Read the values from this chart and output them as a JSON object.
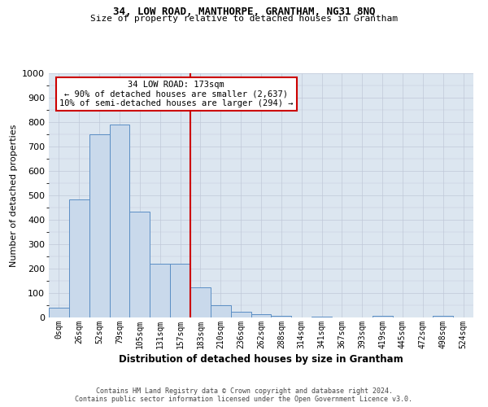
{
  "title": "34, LOW ROAD, MANTHORPE, GRANTHAM, NG31 8NQ",
  "subtitle": "Size of property relative to detached houses in Grantham",
  "xlabel": "Distribution of detached houses by size in Grantham",
  "ylabel": "Number of detached properties",
  "footer_line1": "Contains HM Land Registry data © Crown copyright and database right 2024.",
  "footer_line2": "Contains public sector information licensed under the Open Government Licence v3.0.",
  "bar_labels": [
    "0sqm",
    "26sqm",
    "52sqm",
    "79sqm",
    "105sqm",
    "131sqm",
    "157sqm",
    "183sqm",
    "210sqm",
    "236sqm",
    "262sqm",
    "288sqm",
    "314sqm",
    "341sqm",
    "367sqm",
    "393sqm",
    "419sqm",
    "445sqm",
    "472sqm",
    "498sqm",
    "524sqm"
  ],
  "bar_values": [
    40,
    485,
    750,
    790,
    435,
    220,
    220,
    125,
    50,
    25,
    13,
    8,
    0,
    5,
    0,
    0,
    8,
    0,
    0,
    8,
    0
  ],
  "bar_color": "#c9d9eb",
  "bar_edge_color": "#5b8ec4",
  "reference_line_x": 6.5,
  "annotation_line1": "34 LOW ROAD: 173sqm",
  "annotation_line2": "← 90% of detached houses are smaller (2,637)",
  "annotation_line3": "10% of semi-detached houses are larger (294) →",
  "annotation_box_color": "#ffffff",
  "annotation_box_edge_color": "#cc0000",
  "vline_color": "#cc0000",
  "ylim": [
    0,
    1000
  ],
  "yticks": [
    0,
    100,
    200,
    300,
    400,
    500,
    600,
    700,
    800,
    900,
    1000
  ],
  "grid_color": "#c0c8d8",
  "bg_color": "#dce6f0",
  "title_fontsize": 9,
  "subtitle_fontsize": 8,
  "ylabel_fontsize": 8,
  "xlabel_fontsize": 8.5,
  "tick_fontsize": 7,
  "footer_fontsize": 6,
  "annotation_fontsize": 7.5
}
